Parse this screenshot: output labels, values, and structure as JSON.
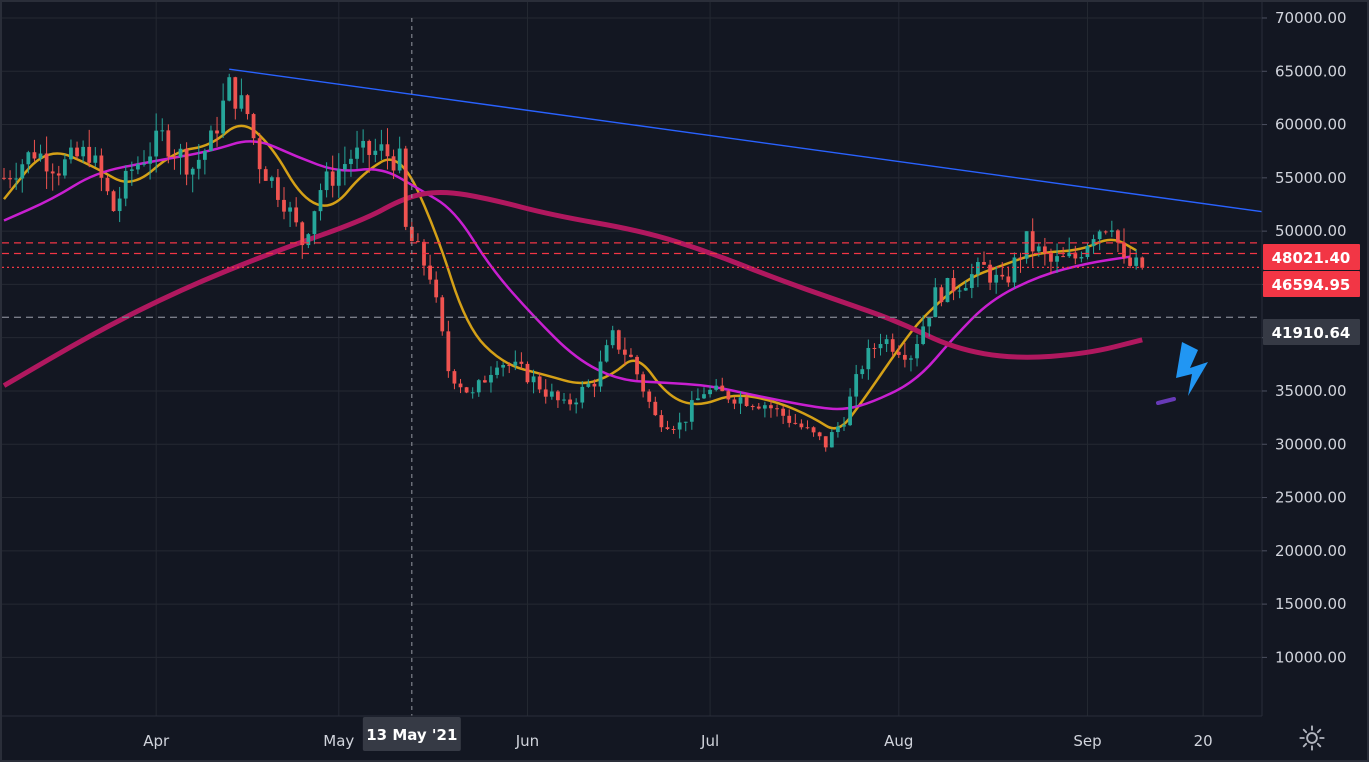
{
  "chart_data": {
    "type": "candlestick",
    "x_axis_labels": [
      {
        "label": "Apr",
        "date": "2021-04-01"
      },
      {
        "label": "May",
        "date": "2021-05-01"
      },
      {
        "label": "Jun",
        "date": "2021-06-01"
      },
      {
        "label": "Jul",
        "date": "2021-07-01"
      },
      {
        "label": "Aug",
        "date": "2021-08-01"
      },
      {
        "label": "Sep",
        "date": "2021-09-01"
      },
      {
        "label": "20",
        "date": "2021-09-20"
      }
    ],
    "crosshair": {
      "label": "13 May '21",
      "date": "2021-05-13"
    },
    "y_ticks": [
      10000,
      15000,
      20000,
      25000,
      30000,
      35000,
      40000,
      45000,
      50000,
      55000,
      60000,
      65000,
      70000
    ],
    "y_tick_labels": [
      "10000.00",
      "15000.00",
      "20000.00",
      "25000.00",
      "30000.00",
      "35000.00",
      "40000.00",
      "45000.00",
      "50000.00",
      "55000.00",
      "60000.00",
      "65000.00",
      "70000.00"
    ],
    "ylim": [
      4500,
      71500
    ],
    "x_range": [
      "2021-03-07",
      "2021-09-30"
    ],
    "price_tags": [
      {
        "value": 48021.4,
        "label": "48021.40",
        "color": "#f23645"
      },
      {
        "value": 46594.95,
        "label": "46594.95",
        "color": "#f23645"
      },
      {
        "value": 41910.64,
        "label": "41910.64",
        "color": "#363a45"
      }
    ],
    "horizontal_lines": [
      {
        "value": 48900,
        "style": "dashed",
        "color": "#f23645"
      },
      {
        "value": 47900,
        "style": "dashed",
        "color": "#f23645"
      },
      {
        "value": 46594.95,
        "style": "dotted",
        "color": "#f23645"
      },
      {
        "value": 41910.64,
        "style": "dashed",
        "color": "#787b86"
      }
    ],
    "trendline": {
      "x1": "2021-04-13",
      "y1": 65200,
      "x2": "2021-09-30",
      "y2": 51800,
      "color": "#2962ff"
    },
    "up_color": "#26a69a",
    "down_color": "#ef5350",
    "candle_anchors": [
      [
        "2021-03-07",
        55000
      ],
      [
        "2021-03-12",
        57500
      ],
      [
        "2021-03-16",
        56000
      ],
      [
        "2021-03-21",
        57500
      ],
      [
        "2021-03-25",
        52000
      ],
      [
        "2021-03-28",
        55800
      ],
      [
        "2021-04-02",
        58800
      ],
      [
        "2021-04-07",
        56000
      ],
      [
        "2021-04-10",
        58400
      ],
      [
        "2021-04-13",
        63500
      ],
      [
        "2021-04-16",
        61000
      ],
      [
        "2021-04-18",
        56500
      ],
      [
        "2021-04-22",
        53000
      ],
      [
        "2021-04-25",
        49000
      ],
      [
        "2021-04-28",
        54000
      ],
      [
        "2021-05-03",
        57000
      ],
      [
        "2021-05-08",
        57500
      ],
      [
        "2021-05-11",
        56500
      ],
      [
        "2021-05-12",
        50000
      ],
      [
        "2021-05-16",
        46000
      ],
      [
        "2021-05-19",
        37000
      ],
      [
        "2021-05-23",
        34500
      ],
      [
        "2021-05-27",
        38000
      ],
      [
        "2021-06-01",
        36500
      ],
      [
        "2021-06-07",
        33500
      ],
      [
        "2021-06-12",
        36000
      ],
      [
        "2021-06-15",
        40000
      ],
      [
        "2021-06-18",
        38000
      ],
      [
        "2021-06-22",
        32500
      ],
      [
        "2021-06-26",
        31800
      ],
      [
        "2021-06-30",
        35000
      ],
      [
        "2021-07-05",
        34500
      ],
      [
        "2021-07-10",
        33800
      ],
      [
        "2021-07-15",
        32000
      ],
      [
        "2021-07-20",
        30000
      ],
      [
        "2021-07-23",
        32500
      ],
      [
        "2021-07-26",
        37500
      ],
      [
        "2021-07-29",
        40000
      ],
      [
        "2021-08-03",
        38500
      ],
      [
        "2021-08-07",
        44000
      ],
      [
        "2021-08-12",
        45500
      ],
      [
        "2021-08-15",
        46500
      ],
      [
        "2021-08-18",
        44800
      ],
      [
        "2021-08-22",
        49000
      ],
      [
        "2021-08-26",
        47000
      ],
      [
        "2021-08-30",
        47500
      ],
      [
        "2021-09-02",
        50000
      ],
      [
        "2021-09-05",
        51000
      ],
      [
        "2021-09-07",
        46800
      ],
      [
        "2021-09-10",
        46600
      ]
    ],
    "moving_averages": [
      {
        "color": "#d4a017",
        "points": [
          [
            "2021-03-07",
            53000
          ],
          [
            "2021-03-14",
            58000
          ],
          [
            "2021-03-22",
            56000
          ],
          [
            "2021-03-28",
            54000
          ],
          [
            "2021-04-04",
            57500
          ],
          [
            "2021-04-10",
            58000
          ],
          [
            "2021-04-15",
            60500
          ],
          [
            "2021-04-20",
            58000
          ],
          [
            "2021-04-25",
            53000
          ],
          [
            "2021-04-30",
            52000
          ],
          [
            "2021-05-05",
            55500
          ],
          [
            "2021-05-11",
            57500
          ],
          [
            "2021-05-17",
            50000
          ],
          [
            "2021-05-22",
            41000
          ],
          [
            "2021-05-28",
            37500
          ],
          [
            "2021-06-04",
            36500
          ],
          [
            "2021-06-10",
            35500
          ],
          [
            "2021-06-15",
            36500
          ],
          [
            "2021-06-19",
            38500
          ],
          [
            "2021-06-24",
            34500
          ],
          [
            "2021-06-29",
            33500
          ],
          [
            "2021-07-05",
            34800
          ],
          [
            "2021-07-12",
            34000
          ],
          [
            "2021-07-18",
            32500
          ],
          [
            "2021-07-22",
            31000
          ],
          [
            "2021-07-26",
            34000
          ],
          [
            "2021-08-01",
            39000
          ],
          [
            "2021-08-05",
            42000
          ],
          [
            "2021-08-12",
            45500
          ],
          [
            "2021-08-18",
            46800
          ],
          [
            "2021-08-24",
            48000
          ],
          [
            "2021-08-31",
            48200
          ],
          [
            "2021-09-05",
            49500
          ],
          [
            "2021-09-09",
            48200
          ]
        ]
      },
      {
        "color": "#c81fd0",
        "points": [
          [
            "2021-03-07",
            51000
          ],
          [
            "2021-03-15",
            53000
          ],
          [
            "2021-03-22",
            55500
          ],
          [
            "2021-03-31",
            56500
          ],
          [
            "2021-04-10",
            57500
          ],
          [
            "2021-04-17",
            58800
          ],
          [
            "2021-04-24",
            57000
          ],
          [
            "2021-05-01",
            55500
          ],
          [
            "2021-05-08",
            56000
          ],
          [
            "2021-05-14",
            54000
          ],
          [
            "2021-05-20",
            52000
          ],
          [
            "2021-05-26",
            46500
          ],
          [
            "2021-06-02",
            42000
          ],
          [
            "2021-06-09",
            38000
          ],
          [
            "2021-06-16",
            36000
          ],
          [
            "2021-06-23",
            35800
          ],
          [
            "2021-07-01",
            35500
          ],
          [
            "2021-07-09",
            34500
          ],
          [
            "2021-07-18",
            33500
          ],
          [
            "2021-07-23",
            33200
          ],
          [
            "2021-07-28",
            34000
          ],
          [
            "2021-08-04",
            36000
          ],
          [
            "2021-08-10",
            40000
          ],
          [
            "2021-08-16",
            43500
          ],
          [
            "2021-08-24",
            45800
          ],
          [
            "2021-09-01",
            47000
          ],
          [
            "2021-09-08",
            47600
          ]
        ]
      },
      {
        "color": "#b0185f",
        "points": [
          [
            "2021-03-07",
            35500
          ],
          [
            "2021-03-22",
            40500
          ],
          [
            "2021-04-05",
            44500
          ],
          [
            "2021-04-20",
            48000
          ],
          [
            "2021-05-05",
            51000
          ],
          [
            "2021-05-12",
            53200
          ],
          [
            "2021-05-18",
            53800
          ],
          [
            "2021-05-26",
            53000
          ],
          [
            "2021-06-05",
            51500
          ],
          [
            "2021-06-20",
            50000
          ],
          [
            "2021-07-01",
            48000
          ],
          [
            "2021-07-12",
            45500
          ],
          [
            "2021-07-22",
            43500
          ],
          [
            "2021-08-01",
            41500
          ],
          [
            "2021-08-10",
            39000
          ],
          [
            "2021-08-20",
            38000
          ],
          [
            "2021-09-01",
            38500
          ],
          [
            "2021-09-10",
            39800
          ]
        ]
      }
    ]
  },
  "drawings": {
    "lightning_color": "#2196f3",
    "small_line_color": "#673ab7"
  },
  "settings_icon": "gear-icon"
}
